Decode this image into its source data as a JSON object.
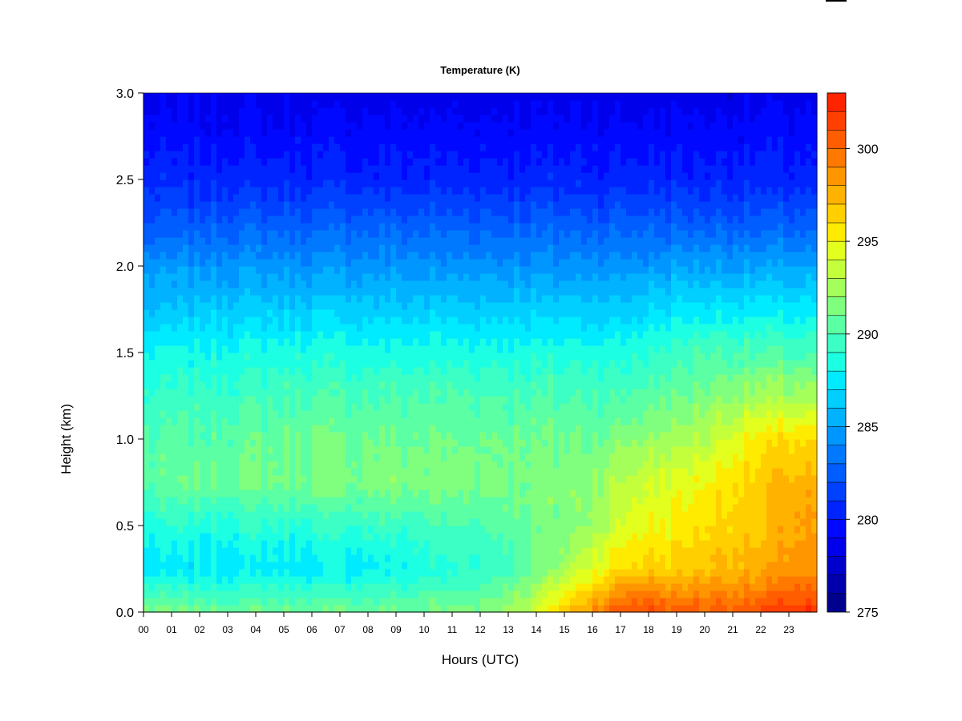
{
  "chart_data": {
    "type": "heatmap",
    "title": "Temperature (K)",
    "xlabel": "Hours (UTC)",
    "ylabel": "Height (km)",
    "x_ticks": [
      "00",
      "01",
      "02",
      "03",
      "04",
      "05",
      "06",
      "07",
      "08",
      "09",
      "10",
      "11",
      "12",
      "13",
      "14",
      "15",
      "16",
      "17",
      "18",
      "19",
      "20",
      "21",
      "22",
      "23"
    ],
    "xlim": [
      0,
      24
    ],
    "y_ticks": [
      "0.0",
      "0.5",
      "1.0",
      "1.5",
      "2.0",
      "2.5",
      "3.0"
    ],
    "ylim": [
      0,
      3.0
    ],
    "colorbar": {
      "ticks": [
        "275",
        "280",
        "285",
        "290",
        "295",
        "300"
      ],
      "range": [
        275,
        303
      ],
      "levels": [
        275,
        276,
        277,
        278,
        279,
        280,
        281,
        282,
        283,
        284,
        285,
        286,
        287,
        288,
        289,
        290,
        291,
        292,
        293,
        294,
        295,
        296,
        297,
        298,
        299,
        300,
        301,
        302,
        303
      ],
      "colors": [
        "#00008f",
        "#0000ad",
        "#0000cc",
        "#0000ea",
        "#0008ff",
        "#0024ff",
        "#0040ff",
        "#005dff",
        "#0079ff",
        "#0096ff",
        "#00b2ff",
        "#00cfff",
        "#00ebff",
        "#1dffe2",
        "#3bffc4",
        "#5bffa4",
        "#80ff7f",
        "#a4ff5b",
        "#c4ff3b",
        "#e2ff1d",
        "#ffeb00",
        "#ffcf00",
        "#ffb200",
        "#ff9600",
        "#ff7900",
        "#ff5d00",
        "#ff4000",
        "#ff2400",
        "#e60000",
        "#c30000",
        "#a00000",
        "#800000"
      ]
    },
    "temperature_profile_K": {
      "heights_km": [
        0.0,
        0.25,
        0.5,
        0.75,
        1.0,
        1.25,
        1.5,
        1.75,
        2.0,
        2.25,
        2.5,
        2.75,
        3.0
      ],
      "hours": [
        0,
        3,
        6,
        9,
        12,
        13,
        14,
        15,
        16,
        17,
        18,
        19,
        20,
        21,
        22,
        23,
        24
      ],
      "values": [
        [
          291.5,
          291.0,
          291.0,
          291.0,
          291.5,
          292.5,
          294.0,
          297.0,
          299.0,
          301.0,
          301.5,
          300.5,
          300.5,
          300.5,
          301.0,
          302.0,
          302.0
        ],
        [
          287.3,
          287.5,
          287.5,
          288.0,
          289.0,
          290.0,
          291.0,
          292.5,
          294.5,
          296.0,
          296.5,
          296.5,
          297.0,
          297.5,
          297.5,
          298.5,
          298.5
        ],
        [
          288.5,
          288.8,
          289.0,
          289.5,
          290.0,
          290.5,
          291.0,
          291.5,
          292.5,
          294.0,
          295.0,
          295.5,
          296.0,
          296.5,
          296.5,
          298.0,
          298.0
        ],
        [
          290.5,
          291.0,
          291.3,
          291.5,
          291.5,
          291.5,
          291.5,
          291.5,
          292.0,
          293.0,
          294.0,
          294.5,
          295.0,
          296.0,
          296.5,
          297.5,
          297.5
        ],
        [
          290.0,
          290.5,
          291.0,
          291.0,
          291.0,
          291.0,
          291.0,
          291.0,
          291.0,
          291.5,
          292.0,
          292.5,
          293.0,
          294.5,
          295.5,
          296.0,
          296.0
        ],
        [
          289.0,
          289.5,
          290.0,
          290.0,
          290.0,
          290.0,
          290.0,
          290.0,
          290.0,
          290.0,
          290.5,
          291.0,
          291.5,
          292.0,
          292.5,
          292.5,
          292.5
        ],
        [
          288.0,
          288.3,
          288.5,
          288.5,
          288.5,
          288.5,
          288.5,
          288.5,
          288.5,
          288.5,
          289.0,
          289.5,
          290.0,
          290.0,
          290.0,
          290.0,
          290.0
        ],
        [
          286.0,
          286.5,
          286.5,
          286.5,
          286.5,
          286.5,
          286.5,
          286.5,
          286.5,
          286.5,
          287.0,
          287.5,
          287.5,
          287.5,
          287.5,
          287.5,
          287.5
        ],
        [
          284.5,
          284.5,
          284.5,
          284.5,
          284.5,
          284.5,
          284.5,
          284.5,
          284.5,
          284.5,
          284.5,
          285.0,
          285.0,
          285.0,
          285.0,
          285.0,
          285.0
        ],
        [
          282.0,
          282.5,
          282.5,
          282.5,
          282.5,
          282.5,
          282.5,
          282.5,
          282.5,
          282.5,
          282.5,
          282.5,
          282.5,
          282.5,
          282.5,
          282.5,
          282.5
        ],
        [
          280.5,
          280.5,
          280.5,
          280.5,
          280.5,
          280.5,
          280.5,
          280.5,
          280.5,
          280.5,
          280.5,
          280.5,
          280.5,
          280.5,
          280.5,
          280.5,
          280.5
        ],
        [
          279.5,
          279.5,
          279.5,
          279.5,
          279.5,
          279.5,
          279.5,
          279.5,
          279.5,
          279.5,
          279.5,
          279.5,
          279.5,
          279.5,
          279.5,
          279.5,
          279.5
        ],
        [
          278.5,
          278.5,
          278.5,
          278.5,
          278.5,
          278.5,
          278.5,
          278.5,
          278.5,
          278.5,
          278.5,
          278.5,
          278.5,
          278.5,
          278.5,
          278.5,
          278.5
        ]
      ]
    }
  }
}
